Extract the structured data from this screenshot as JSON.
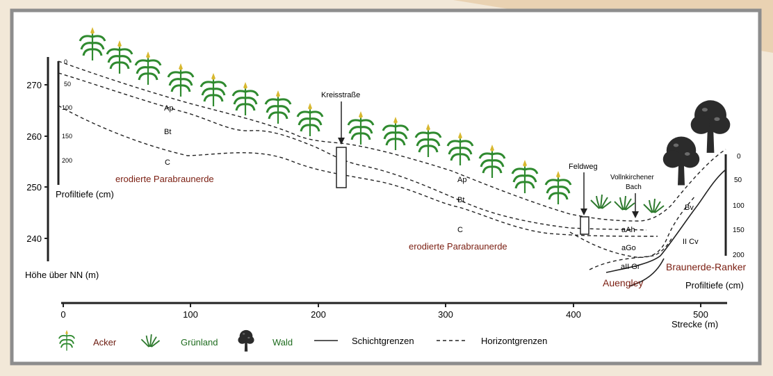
{
  "colors": {
    "frame": "#8d8d8d",
    "corner": "#e9d2b2",
    "soil_label": "#7a1d10",
    "legend_green": "#1d6b1d",
    "legend_brown": "#6b1a0e",
    "line": "#222222",
    "plant_green": "#2f8a2f",
    "plant_yellow": "#d8b830",
    "tree": "#2b2b2b"
  },
  "elevation_axis": {
    "title": "Höhe über NN (m)",
    "ticks": [
      "270",
      "260",
      "250",
      "240"
    ]
  },
  "depth_axis_left": {
    "ticks": [
      "0",
      "50",
      "100",
      "150",
      "200"
    ],
    "title": "Profiltiefe (cm)"
  },
  "depth_axis_right": {
    "ticks": [
      "0",
      "50",
      "100",
      "150",
      "200"
    ],
    "title": "Profiltiefe (cm)"
  },
  "distance_axis": {
    "ticks": [
      "0",
      "100",
      "200",
      "300",
      "400",
      "500"
    ],
    "title": "Strecke (m)"
  },
  "horizon_labels": {
    "ap_1": "Ap",
    "bt_1": "Bt",
    "c_1": "C",
    "ap_2": "Ap",
    "bt_2": "Bt",
    "c_2": "C",
    "aah": "aAh",
    "ago": "aGo",
    "aii_gr": "aII Gr",
    "bv": "Bv",
    "ii_cv": "II Cv"
  },
  "soil_types": {
    "parabraunerde_1": "erodierte Parabraunerde",
    "parabraunerde_2": "erodierte Parabraunerde",
    "auengley": "Auengley",
    "ranker": "Braunerde-Ranker"
  },
  "annotations": {
    "kreisstrasse": "Kreisstraße",
    "feldweg": "Feldweg",
    "bach_line1": "Vollnkirchener",
    "bach_line2": "Bach"
  },
  "legend": {
    "acker": "Acker",
    "gruenland": "Grünland",
    "wald": "Wald",
    "schicht": "Schichtgrenzen",
    "horizont": "Horizontgrenzen"
  }
}
